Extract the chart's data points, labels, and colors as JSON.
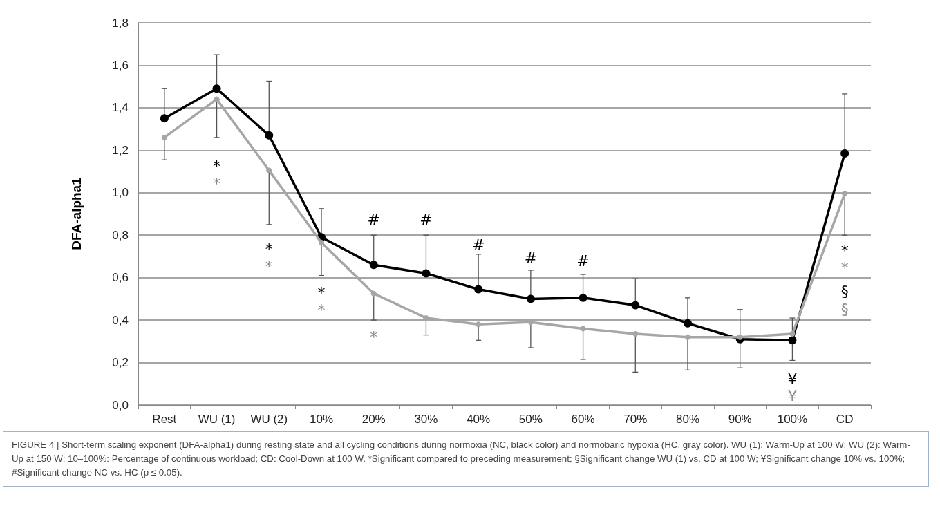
{
  "chart_data": {
    "type": "line",
    "ylabel": "DFA-alpha1",
    "categories": [
      "Rest",
      "WU (1)",
      "WU (2)",
      "10%",
      "20%",
      "30%",
      "40%",
      "50%",
      "60%",
      "70%",
      "80%",
      "90%",
      "100%",
      "CD"
    ],
    "series": [
      {
        "color": "#000000",
        "values": [
          1.35,
          1.49,
          1.27,
          0.79,
          0.66,
          0.62,
          0.545,
          0.5,
          0.505,
          0.47,
          0.385,
          0.31,
          0.305,
          1.185
        ],
        "errors": [
          [
            1.35,
            1.49
          ],
          [
            1.49,
            1.65
          ],
          [
            1.27,
            1.525
          ],
          [
            0.79,
            0.925
          ],
          [
            0.66,
            0.8
          ],
          [
            0.62,
            0.8
          ],
          [
            0.545,
            0.71
          ],
          [
            0.5,
            0.635
          ],
          [
            0.505,
            0.615
          ],
          [
            0.47,
            0.595
          ],
          [
            0.385,
            0.505
          ],
          [
            0.31,
            0.45
          ],
          [
            0.305,
            0.41
          ],
          [
            1.185,
            1.465
          ]
        ]
      },
      {
        "color": "#a6a6a6",
        "values": [
          1.26,
          1.44,
          1.105,
          0.765,
          0.525,
          0.41,
          0.38,
          0.39,
          0.36,
          0.335,
          0.32,
          0.32,
          0.335,
          0.995
        ],
        "errors": [
          [
            1.155,
            1.26
          ],
          [
            1.26,
            1.44
          ],
          [
            0.85,
            1.105
          ],
          [
            0.61,
            0.765
          ],
          [
            0.4,
            0.525
          ],
          [
            0.33,
            0.41
          ],
          [
            0.305,
            0.38
          ],
          [
            0.27,
            0.39
          ],
          [
            0.215,
            0.36
          ],
          [
            0.155,
            0.335
          ],
          [
            0.165,
            0.32
          ],
          [
            0.175,
            0.32
          ],
          [
            0.21,
            0.335
          ],
          [
            0.8,
            0.995
          ]
        ]
      }
    ],
    "ylim": [
      0,
      1.8
    ],
    "yticks": [
      {
        "value": 0,
        "label": "0,0"
      },
      {
        "value": 0.2,
        "label": "0,2"
      },
      {
        "value": 0.4,
        "label": "0,4"
      },
      {
        "value": 0.6,
        "label": "0,6"
      },
      {
        "value": 0.8,
        "label": "0,8"
      },
      {
        "value": 1.0,
        "label": "1,0"
      },
      {
        "value": 1.2,
        "label": "1,2"
      },
      {
        "value": 1.4,
        "label": "1,4"
      },
      {
        "value": 1.6,
        "label": "1,6"
      },
      {
        "value": 1.8,
        "label": "1,8"
      }
    ],
    "grid": "y",
    "marker": "circle",
    "line_style": "solid",
    "annotations": [
      "*",
      "*",
      "*",
      "*",
      "*",
      "*",
      "*",
      "#",
      "#",
      "#",
      "#",
      "#",
      "¥",
      "¥",
      "*",
      "*",
      "§",
      "§",
      "FIGURE 4 | Short-term scaling exponent (DFA-alpha1) during resting state and all cycling conditions during normoxia (NC, black color) and normobaric hypoxia (HC, gray color). WU (1): Warm-Up at 100 W; WU (2): Warm-Up at 150 W; 10–100%: Percentage of continuous workload; CD: Cool-Down at 100 W. *Significant compared to preceding measurement; §Significant change WU (1) vs. CD at 100 W; ¥Significant change 10% vs. 100%; #Significant change NC vs. HC (p ≤ 0.05)."
    ]
  }
}
